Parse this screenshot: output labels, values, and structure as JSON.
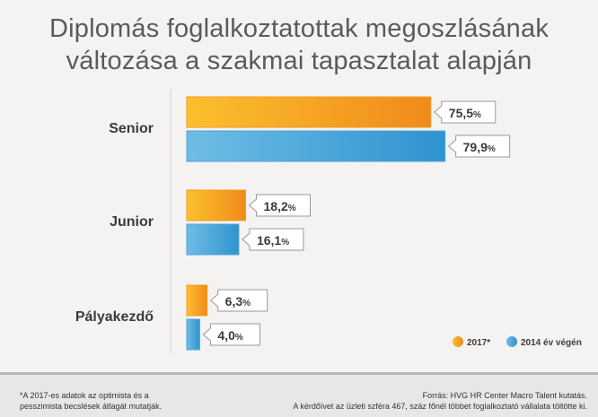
{
  "title": {
    "line1": "Diplomás foglalkoztatottak megoszlásának",
    "line2": "változása a szakmai tapasztalat alapján"
  },
  "colors": {
    "series_2017": "#f39b1f",
    "series_2014": "#4aa6d6",
    "callout_border": "#999999",
    "axis": "#cfcfcf"
  },
  "chart_data": {
    "type": "bar",
    "orientation": "horizontal",
    "categories": [
      "Senior",
      "Junior",
      "Pályakezdő"
    ],
    "series": [
      {
        "name": "2017*",
        "values": [
          75.5,
          18.2,
          6.3
        ],
        "labels": [
          "75,5",
          "18,2",
          "6,3"
        ]
      },
      {
        "name": "2014 év végén",
        "values": [
          79.9,
          16.1,
          4.0
        ],
        "labels": [
          "79,9",
          "16,1",
          "4,0"
        ]
      }
    ],
    "unit": "%",
    "legend": "bottom-right",
    "grid": false
  },
  "footnote": {
    "left_line1": "*A 2017-es adatok az optimista és a",
    "left_line2": "pesszimista becslések átlagát mutatják.",
    "right_line1": "Forrás: HVG HR Center Macro Talent kutatás.",
    "right_line2": "A kérdőívet az üzleti szféra 467, száz főnél többet foglalkoztató vállalata töltötte ki."
  }
}
